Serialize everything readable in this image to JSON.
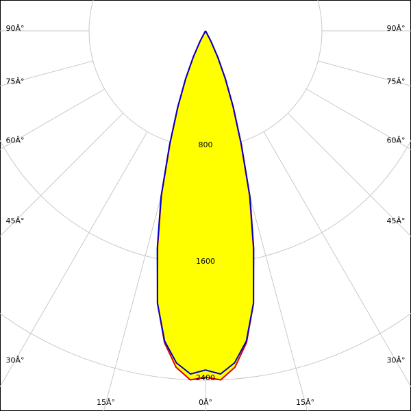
{
  "chart_data": {
    "type": "polar",
    "angles": [
      -30,
      -27.5,
      -25,
      -22.5,
      -20,
      -17.5,
      -15,
      -12.5,
      -10,
      -7.5,
      -5,
      -2.5,
      0,
      2.5,
      5,
      7.5,
      10,
      12.5,
      15,
      17.5,
      20,
      22.5,
      25,
      27.5,
      30
    ],
    "series": [
      {
        "color": "#dd0000",
        "values": [
          0,
          78,
          195,
          350,
          550,
          810,
          1170,
          1520,
          1900,
          2160,
          2320,
          2400,
          2380,
          2400,
          2320,
          2160,
          1900,
          1520,
          1170,
          810,
          550,
          350,
          195,
          78,
          0
        ]
      },
      {
        "color": "#0000cc",
        "values": [
          0,
          80,
          200,
          360,
          560,
          820,
          1180,
          1530,
          1900,
          2150,
          2290,
          2360,
          2330,
          2360,
          2290,
          2150,
          1900,
          1530,
          1180,
          820,
          560,
          360,
          200,
          80,
          0
        ]
      }
    ],
    "fill": "#ffff00",
    "rlim": [
      0,
      2400
    ],
    "rticks": [
      800,
      1600,
      2400
    ],
    "angle_ticks": [
      {
        "value": 0,
        "label": "0Â°"
      },
      {
        "value": 15,
        "label": "15Â°"
      },
      {
        "value": 30,
        "label": "30Â°"
      },
      {
        "value": 45,
        "label": "45Â°"
      },
      {
        "value": 60,
        "label": "60Â°"
      },
      {
        "value": 75,
        "label": "75Â°"
      },
      {
        "value": 90,
        "label": "90Â°"
      }
    ]
  }
}
